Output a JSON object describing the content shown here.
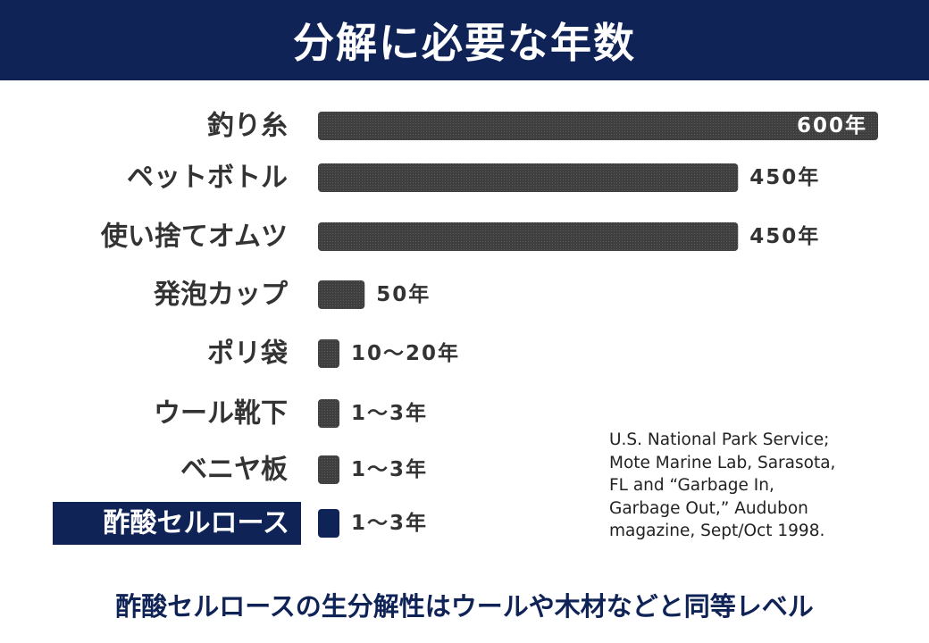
{
  "header": {
    "title": "分解に必要な年数"
  },
  "colors": {
    "header_bg": "#0f2357",
    "bar": "#3f3f3f",
    "highlight": "#0f2357"
  },
  "chart_data": {
    "type": "bar",
    "orientation": "horizontal",
    "categories": [
      "釣り糸",
      "ペットボトル",
      "使い捨てオムツ",
      "発泡カップ",
      "ポリ袋",
      "ウール靴下",
      "ベニヤ板",
      "酢酸セルロース"
    ],
    "values": [
      600,
      450,
      450,
      50,
      15,
      2,
      2,
      2
    ],
    "value_labels": [
      "600年",
      "450年",
      "450年",
      "50年",
      "10〜20年",
      "1〜3年",
      "1〜3年",
      "1〜3年"
    ],
    "highlighted_category": "酢酸セルロース",
    "xlabel": "",
    "ylabel": "",
    "grid": false,
    "legend": "none"
  },
  "source": "U.S. National Park Service;\nMote Marine Lab, Sarasota,\nFL and “Garbage In,\nGarbage Out,” Audubon\nmagazine, Sept/Oct 1998.",
  "footer": {
    "text": "酢酸セルロースの生分解性はウールや木材などと同等レベル"
  }
}
